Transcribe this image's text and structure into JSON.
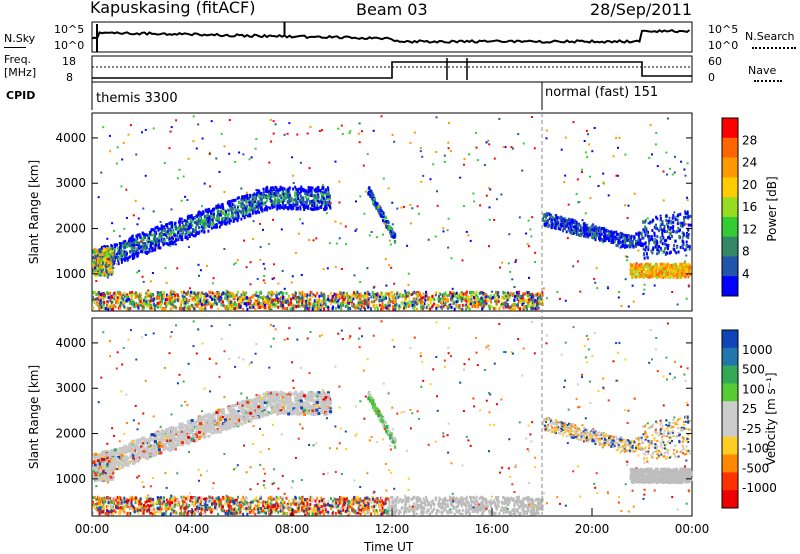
{
  "header": {
    "station": "Kapuskasing (fitACF)",
    "beam": "Beam 03",
    "date": "28/Sep/2011"
  },
  "panels": {
    "nsky": {
      "left_label": "N.Sky",
      "left_ticks": [
        "10^5",
        "10^0"
      ],
      "right_ticks": [
        "10^5",
        "10^0"
      ],
      "right_label": "N.Search"
    },
    "freq": {
      "left_label_1": "Freq.",
      "left_label_2": "[MHz]",
      "left_ticks": [
        "18",
        "8"
      ],
      "right_ticks": [
        "60",
        "0"
      ],
      "right_label": "Nave"
    },
    "cpid": {
      "label": "CPID",
      "segments": [
        {
          "name": "themis 3300",
          "start_hour": 0
        },
        {
          "name": "normal (fast) 151",
          "start_hour": 18
        }
      ]
    }
  },
  "chart_data": [
    {
      "type": "heatmap",
      "name": "power",
      "ylabel": "Slant Range [km]",
      "yticks": [
        1000,
        2000,
        3000,
        4000
      ],
      "colorbar_label": "Power [dB]",
      "colorbar_ticks": [
        "28",
        "24",
        "20",
        "16",
        "12",
        "8",
        "4"
      ],
      "colors": [
        "#ff0000",
        "#ff6600",
        "#ff9900",
        "#ffcc00",
        "#99dd22",
        "#33cc33",
        "#338866",
        "#2255aa",
        "#0000ff"
      ],
      "features": [
        {
          "desc": "ionospheric band",
          "start_hour": 0,
          "end_hour": 9.5,
          "range_start_km": 1300,
          "range_end_km": 2700
        },
        {
          "desc": "ground scatter strip",
          "start_hour": 0,
          "end_hour": 18,
          "range_km": 400
        },
        {
          "desc": "evening band",
          "start_hour": 21.5,
          "end_hour": 24,
          "range_km": 1100
        }
      ]
    },
    {
      "type": "heatmap",
      "name": "velocity",
      "ylabel": "Slant Range [km]",
      "yticks": [
        1000,
        2000,
        3000,
        4000
      ],
      "colorbar_label": "Velocity [m s⁻¹]",
      "colorbar_ticks": [
        "1000",
        "500",
        "100",
        "25",
        "-25",
        "-100",
        "-500",
        "-1000"
      ],
      "colors": [
        "#1144bb",
        "#2277aa",
        "#33aa55",
        "#55cc33",
        "#cccccc",
        "#cccccc",
        "#ffcc22",
        "#ff8800",
        "#ff3300",
        "#ee0000"
      ]
    }
  ],
  "x_axis": {
    "label": "Time UT",
    "ticks": [
      {
        "hour": 0,
        "label": "00:00"
      },
      {
        "hour": 4,
        "label": "04:00"
      },
      {
        "hour": 8,
        "label": "08:00"
      },
      {
        "hour": 12,
        "label": "12:00"
      },
      {
        "hour": 16,
        "label": "16:00"
      },
      {
        "hour": 20,
        "label": "20:00"
      },
      {
        "hour": 24,
        "label": "00:00"
      }
    ]
  }
}
